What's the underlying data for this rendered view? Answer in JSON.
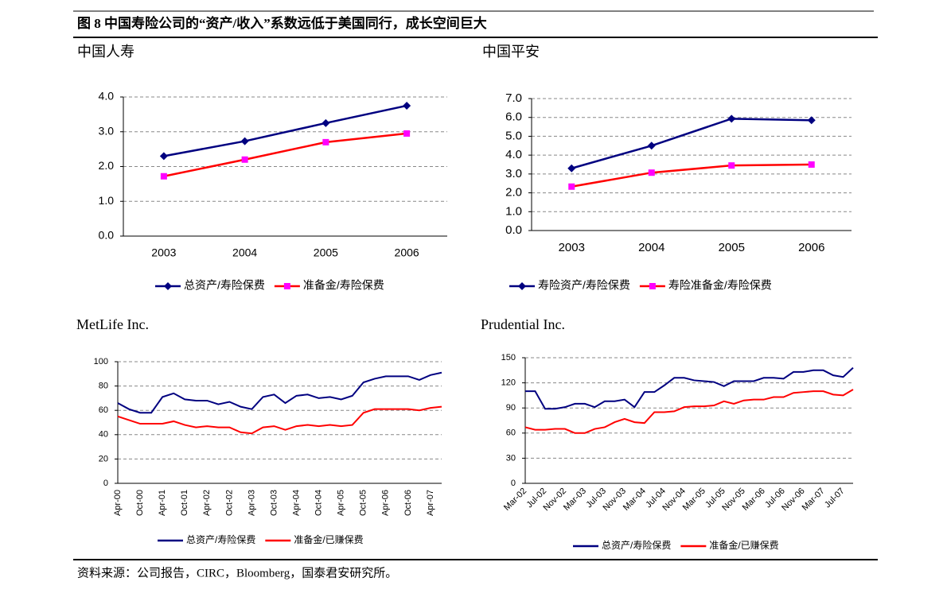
{
  "figure_title": "图 8 中国寿险公司的“资产/收入”系数远低于美国同行，成长空间巨大",
  "source": "资料来源：公司报告，CIRC，Bloomberg，国泰君安研究所。",
  "chart_data": [
    {
      "type": "line",
      "title": "中国人寿",
      "categories": [
        "2003",
        "2004",
        "2005",
        "2006"
      ],
      "series": [
        {
          "name": "总资产/寿险保费",
          "color": "#000080",
          "marker": "diamond",
          "marker_color": "#000080",
          "values": [
            2.3,
            2.73,
            3.25,
            3.75
          ]
        },
        {
          "name": "准备金/寿险保费",
          "color": "#ff0000",
          "marker": "square",
          "marker_color": "#ff00ff",
          "values": [
            1.72,
            2.2,
            2.7,
            2.95
          ]
        }
      ],
      "ylim": [
        0,
        4
      ],
      "yticks": [
        {
          "value": 0,
          "label": "0.0"
        },
        {
          "value": 1,
          "label": "1.0"
        },
        {
          "value": 2,
          "label": "2.0"
        },
        {
          "value": 3,
          "label": "3.0"
        },
        {
          "value": 4,
          "label": "4.0"
        }
      ],
      "grid": true
    },
    {
      "type": "line",
      "title": "中国平安",
      "categories": [
        "2003",
        "2004",
        "2005",
        "2006"
      ],
      "series": [
        {
          "name": "寿险资产/寿险保费",
          "color": "#000080",
          "marker": "diamond",
          "marker_color": "#000080",
          "values": [
            3.3,
            4.5,
            5.93,
            5.85
          ]
        },
        {
          "name": "寿险准备金/寿险保费",
          "color": "#ff0000",
          "marker": "square",
          "marker_color": "#ff00ff",
          "values": [
            2.33,
            3.07,
            3.45,
            3.5
          ]
        }
      ],
      "ylim": [
        0,
        7
      ],
      "yticks": [
        {
          "value": 0,
          "label": "0.0"
        },
        {
          "value": 1,
          "label": "1.0"
        },
        {
          "value": 2,
          "label": "2.0"
        },
        {
          "value": 3,
          "label": "3.0"
        },
        {
          "value": 4,
          "label": "4.0"
        },
        {
          "value": 5,
          "label": "5.0"
        },
        {
          "value": 6,
          "label": "6.0"
        },
        {
          "value": 7,
          "label": "7.0"
        }
      ],
      "grid": true
    },
    {
      "type": "line",
      "title": "MetLife Inc.",
      "categories": [
        "Apr-00",
        null,
        "Oct-00",
        null,
        "Apr-01",
        null,
        "Oct-01",
        null,
        "Apr-02",
        null,
        "Oct-02",
        null,
        "Apr-03",
        null,
        "Oct-03",
        null,
        "Apr-04",
        null,
        "Oct-04",
        null,
        "Apr-05",
        null,
        "Oct-05",
        null,
        "Apr-06",
        null,
        "Oct-06",
        null,
        "Apr-07",
        null
      ],
      "series": [
        {
          "name": "总资产/寿险保费",
          "color": "#000080",
          "values": [
            66,
            61,
            58,
            58,
            71,
            74,
            69,
            68,
            68,
            65,
            67,
            63,
            61,
            71,
            73,
            66,
            72,
            73,
            70,
            71,
            69,
            72,
            83,
            86,
            88,
            88,
            88,
            85,
            89,
            91
          ]
        },
        {
          "name": "准备金/已赚保费",
          "color": "#ff0000",
          "values": [
            55,
            52,
            49,
            49,
            49,
            51,
            48,
            46,
            47,
            46,
            46,
            42,
            41,
            46,
            47,
            44,
            47,
            48,
            47,
            48,
            47,
            48,
            58,
            61,
            61,
            61,
            61,
            60,
            62,
            63
          ]
        }
      ],
      "ylim": [
        0,
        100
      ],
      "yticks": [
        0,
        20,
        40,
        60,
        80,
        100
      ],
      "grid": true
    },
    {
      "type": "line",
      "title": "Prudential Inc.",
      "categories": [
        "Mar-02",
        null,
        "Jul-02",
        null,
        "Nov-02",
        null,
        "Mar-03",
        null,
        "Jul-03",
        null,
        "Nov-03",
        null,
        "Mar-04",
        null,
        "Jul-04",
        null,
        "Nov-04",
        null,
        "Mar-05",
        null,
        "Jul-05",
        null,
        "Nov-05",
        null,
        "Mar-06",
        null,
        "Jul-06",
        null,
        "Nov-06",
        null,
        "Mar-07",
        null,
        "Jul-07",
        null
      ],
      "series": [
        {
          "name": "总资产/寿险保费",
          "color": "#000080",
          "values": [
            110,
            110,
            89,
            89,
            91,
            95,
            95,
            91,
            98,
            98,
            100,
            91,
            109,
            109,
            117,
            126,
            126,
            123,
            122,
            121,
            116,
            122,
            122,
            122,
            126,
            126,
            125,
            133,
            133,
            135,
            135,
            129,
            127,
            138
          ]
        },
        {
          "name": "准备金/已赚保费",
          "color": "#ff0000",
          "values": [
            67,
            64,
            64,
            65,
            65,
            60,
            60,
            65,
            67,
            73,
            77,
            73,
            72,
            85,
            85,
            86,
            91,
            92,
            92,
            93,
            98,
            95,
            99,
            100,
            100,
            103,
            103,
            108,
            109,
            110,
            110,
            106,
            105,
            112
          ]
        }
      ],
      "ylim": [
        0,
        150
      ],
      "yticks": [
        0,
        30,
        60,
        90,
        120,
        150
      ],
      "grid": true
    }
  ]
}
